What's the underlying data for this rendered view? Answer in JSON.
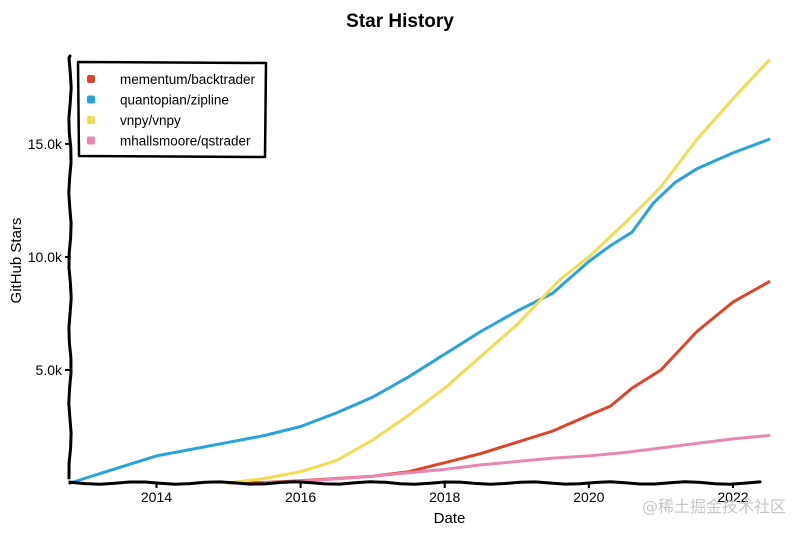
{
  "chart_data": {
    "type": "line",
    "title": "Star History",
    "xlabel": "Date",
    "ylabel": "GitHub Stars",
    "xlim": [
      2012.8,
      2022.5
    ],
    "ylim": [
      0,
      18800
    ],
    "x_ticks": [
      2014,
      2016,
      2018,
      2020,
      2022
    ],
    "x_tick_labels": [
      "2014",
      "2016",
      "2018",
      "2020",
      "2022"
    ],
    "y_ticks": [
      5000,
      10000,
      15000
    ],
    "y_tick_labels": [
      "5.0k",
      "10.0k",
      "15.0k"
    ],
    "grid": false,
    "legend_position": "top-left",
    "series": [
      {
        "name": "mementum/backtrader",
        "color": "#dd4528",
        "x": [
          2015.0,
          2015.5,
          2016.0,
          2016.5,
          2017.0,
          2017.5,
          2018.0,
          2018.5,
          2019.0,
          2019.5,
          2020.0,
          2020.3,
          2020.6,
          2021.0,
          2021.5,
          2022.0,
          2022.5
        ],
        "y": [
          0,
          20,
          100,
          200,
          300,
          500,
          900,
          1300,
          1800,
          2300,
          3000,
          3400,
          4200,
          5000,
          6700,
          8000,
          8900
        ]
      },
      {
        "name": "quantopian/zipline",
        "color": "#28a3dd",
        "x": [
          2012.8,
          2013.0,
          2013.3,
          2013.6,
          2014.0,
          2014.5,
          2015.0,
          2015.5,
          2016.0,
          2016.5,
          2017.0,
          2017.5,
          2018.0,
          2018.5,
          2019.0,
          2019.5,
          2020.0,
          2020.3,
          2020.6,
          2020.9,
          2021.2,
          2021.5,
          2022.0,
          2022.5
        ],
        "y": [
          0,
          200,
          500,
          800,
          1200,
          1500,
          1800,
          2100,
          2500,
          3100,
          3800,
          4700,
          5700,
          6700,
          7600,
          8400,
          9800,
          10500,
          11100,
          12400,
          13300,
          13900,
          14600,
          15200
        ]
      },
      {
        "name": "vnpy/vnpy",
        "color": "#f3db52",
        "x": [
          2015.0,
          2015.5,
          2016.0,
          2016.5,
          2017.0,
          2017.5,
          2018.0,
          2018.5,
          2019.0,
          2019.3,
          2019.6,
          2020.0,
          2020.5,
          2021.0,
          2021.5,
          2022.0,
          2022.5
        ],
        "y": [
          0,
          200,
          500,
          1000,
          1900,
          3000,
          4200,
          5600,
          7000,
          8000,
          9000,
          10000,
          11500,
          13100,
          15200,
          17000,
          18700
        ]
      },
      {
        "name": "mhallsmoore/qstrader",
        "color": "#e787b2",
        "x": [
          2015.5,
          2016.0,
          2016.5,
          2017.0,
          2017.5,
          2018.0,
          2018.5,
          2019.0,
          2019.5,
          2020.0,
          2020.5,
          2021.0,
          2021.5,
          2022.0,
          2022.5
        ],
        "y": [
          0,
          80,
          180,
          300,
          450,
          600,
          800,
          950,
          1100,
          1200,
          1350,
          1550,
          1750,
          1950,
          2100
        ]
      }
    ]
  },
  "watermark": "@稀土掘金技术社区"
}
